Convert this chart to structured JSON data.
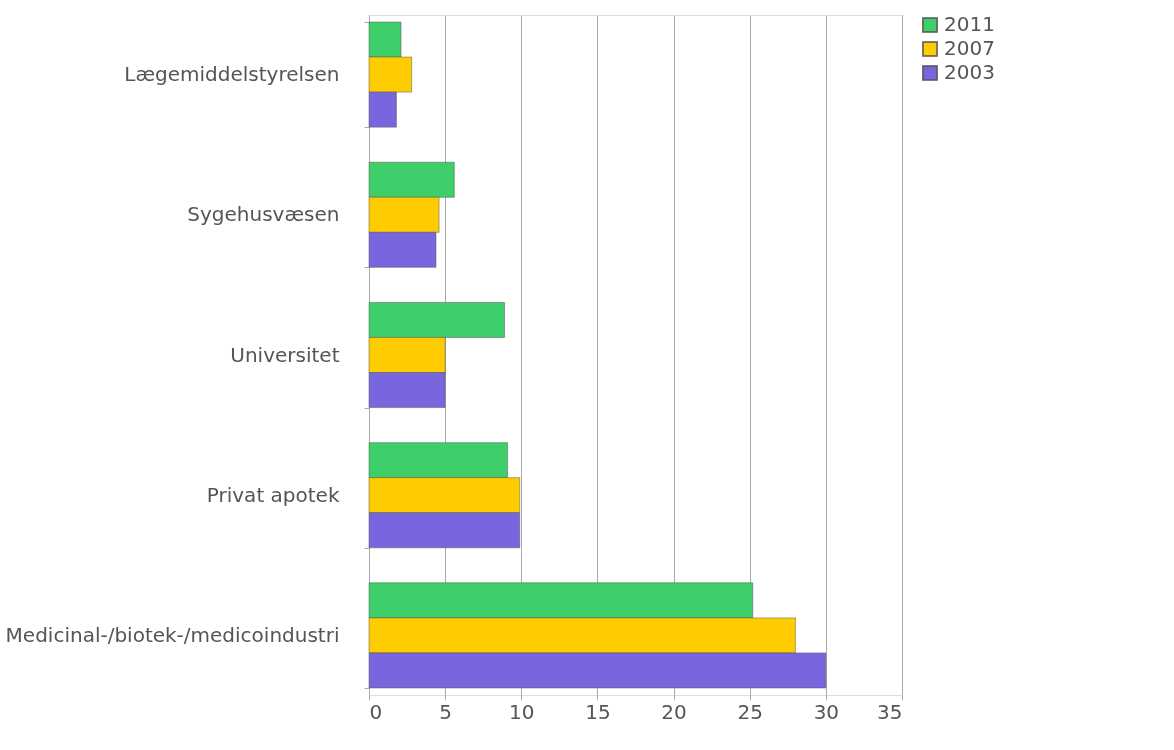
{
  "chart_data": {
    "type": "bar",
    "orientation": "horizontal",
    "categories": [
      "Lægemiddelstyrelsen",
      "Sygehusvæsen",
      "Universitet",
      "Privat apotek",
      "Medicinal-/biotek-/medicoindustri"
    ],
    "series": [
      {
        "name": "2011",
        "color": "#3ecf6a",
        "values": [
          2.1,
          5.6,
          8.9,
          9.1,
          25.2
        ]
      },
      {
        "name": "2007",
        "color": "#ffcc00",
        "values": [
          2.8,
          4.6,
          5.0,
          9.9,
          28.0
        ]
      },
      {
        "name": "2003",
        "color": "#7766dd",
        "values": [
          1.8,
          4.4,
          5.0,
          9.9,
          30.0
        ]
      }
    ],
    "xlim": [
      0,
      35
    ],
    "xticks": [
      0,
      5,
      10,
      15,
      20,
      25,
      30,
      35
    ],
    "grid": "x",
    "legend": "right"
  }
}
